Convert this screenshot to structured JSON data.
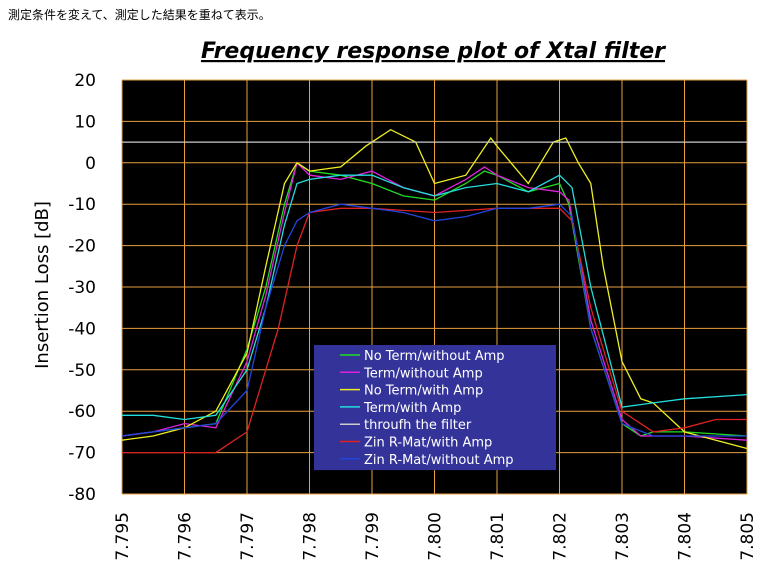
{
  "note": "測定条件を変えて、測定した結果を重ねて表示。",
  "chart_data": {
    "type": "line",
    "title": "Frequency response plot of Xtal filter",
    "xlabel": "",
    "ylabel": "Insertion Loss [dB]",
    "xlim": [
      7.795,
      7.805
    ],
    "ylim": [
      -80,
      20
    ],
    "xticks": [
      "7.795",
      "7.796",
      "7.797",
      "7.798",
      "7.799",
      "7.800",
      "7.801",
      "7.802",
      "7.803",
      "7.804",
      "7.805"
    ],
    "yticks": [
      "20",
      "10",
      "0",
      "-10",
      "-20",
      "-30",
      "-40",
      "-50",
      "-60",
      "-70",
      "-80"
    ],
    "grid": true,
    "background": "#000000",
    "grid_color": "#e8a040",
    "legend_position": "center-bottom",
    "legend_background": "#33339a",
    "series": [
      {
        "name": "No Term/without Amp",
        "color": "#22dd22",
        "x": [
          7.795,
          7.7955,
          7.796,
          7.7965,
          7.797,
          7.7973,
          7.7976,
          7.7978,
          7.798,
          7.7985,
          7.799,
          7.7995,
          7.8,
          7.8005,
          7.8008,
          7.801,
          7.8015,
          7.802,
          7.80215,
          7.8025,
          7.803,
          7.8033,
          7.8035,
          7.804,
          7.805
        ],
        "y": [
          -66,
          -65,
          -64,
          -63,
          -45,
          -30,
          -10,
          0,
          -2,
          -3,
          -5,
          -8,
          -9,
          -5,
          -2,
          -3,
          -7,
          -5,
          -10,
          -40,
          -63,
          -66,
          -65,
          -65,
          -66
        ]
      },
      {
        "name": "Term/without Amp",
        "color": "#dd22dd",
        "x": [
          7.795,
          7.7955,
          7.796,
          7.7965,
          7.797,
          7.7973,
          7.7976,
          7.7978,
          7.798,
          7.7985,
          7.799,
          7.7995,
          7.8,
          7.8005,
          7.8008,
          7.801,
          7.8015,
          7.802,
          7.80215,
          7.8025,
          7.803,
          7.8033,
          7.8035,
          7.804,
          7.805
        ],
        "y": [
          -66,
          -65,
          -63,
          -64,
          -48,
          -32,
          -12,
          0,
          -3,
          -4,
          -2,
          -6,
          -8,
          -4,
          -1,
          -3,
          -6,
          -7,
          -9,
          -38,
          -62,
          -66,
          -66,
          -66,
          -67
        ]
      },
      {
        "name": "No Term/with Amp",
        "color": "#eeee22",
        "x": [
          7.795,
          7.7955,
          7.796,
          7.7965,
          7.797,
          7.7973,
          7.7976,
          7.7978,
          7.798,
          7.7985,
          7.7989,
          7.7993,
          7.7997,
          7.8,
          7.8005,
          7.8009,
          7.801,
          7.8015,
          7.8019,
          7.8021,
          7.8023,
          7.8025,
          7.8027,
          7.803,
          7.8033,
          7.8035,
          7.804,
          7.805
        ],
        "y": [
          -67,
          -66,
          -64,
          -60,
          -46,
          -25,
          -5,
          0,
          -2,
          -1,
          4,
          8,
          5,
          -5,
          -3,
          6,
          4,
          -5,
          5,
          6,
          0,
          -5,
          -25,
          -48,
          -57,
          -58,
          -65,
          -69
        ]
      },
      {
        "name": "Term/with Amp",
        "color": "#22dddd",
        "x": [
          7.795,
          7.7955,
          7.796,
          7.7965,
          7.797,
          7.7973,
          7.7976,
          7.7978,
          7.798,
          7.7985,
          7.799,
          7.7995,
          7.8,
          7.8005,
          7.801,
          7.8015,
          7.802,
          7.8022,
          7.8025,
          7.803,
          7.8035,
          7.804,
          7.805
        ],
        "y": [
          -61,
          -61,
          -62,
          -61,
          -50,
          -35,
          -15,
          -5,
          -4,
          -3,
          -3,
          -6,
          -8,
          -6,
          -5,
          -7,
          -3,
          -6,
          -30,
          -59,
          -58,
          -57,
          -56
        ]
      },
      {
        "name": "throufh the filter",
        "color": "#cccccc",
        "x": [
          7.795,
          7.796,
          7.797,
          7.798,
          7.799,
          7.8,
          7.801,
          7.802,
          7.803,
          7.804,
          7.805
        ],
        "y": [
          5,
          5,
          5,
          5,
          5,
          5,
          5,
          5,
          5,
          5,
          5
        ]
      },
      {
        "name": "Zin R-Mat/with Amp",
        "color": "#dd2222",
        "x": [
          7.795,
          7.7955,
          7.796,
          7.7965,
          7.797,
          7.7975,
          7.7978,
          7.798,
          7.7985,
          7.799,
          7.8,
          7.801,
          7.802,
          7.8022,
          7.8025,
          7.803,
          7.8035,
          7.804,
          7.8045,
          7.805
        ],
        "y": [
          -70,
          -70,
          -70,
          -70,
          -65,
          -40,
          -20,
          -12,
          -11,
          -11,
          -12,
          -11,
          -11,
          -14,
          -35,
          -60,
          -65,
          -64,
          -62,
          -62
        ]
      },
      {
        "name": "Zin R-Mat/without Amp",
        "color": "#2244dd",
        "x": [
          7.795,
          7.7955,
          7.796,
          7.7965,
          7.797,
          7.7973,
          7.7976,
          7.7978,
          7.798,
          7.7985,
          7.799,
          7.7995,
          7.8,
          7.8005,
          7.801,
          7.8015,
          7.802,
          7.8022,
          7.8025,
          7.803,
          7.8035,
          7.804,
          7.805
        ],
        "y": [
          -66,
          -65,
          -64,
          -63,
          -55,
          -35,
          -20,
          -14,
          -12,
          -10,
          -11,
          -12,
          -14,
          -13,
          -11,
          -11,
          -10,
          -13,
          -40,
          -63,
          -66,
          -66,
          -66
        ]
      }
    ]
  }
}
